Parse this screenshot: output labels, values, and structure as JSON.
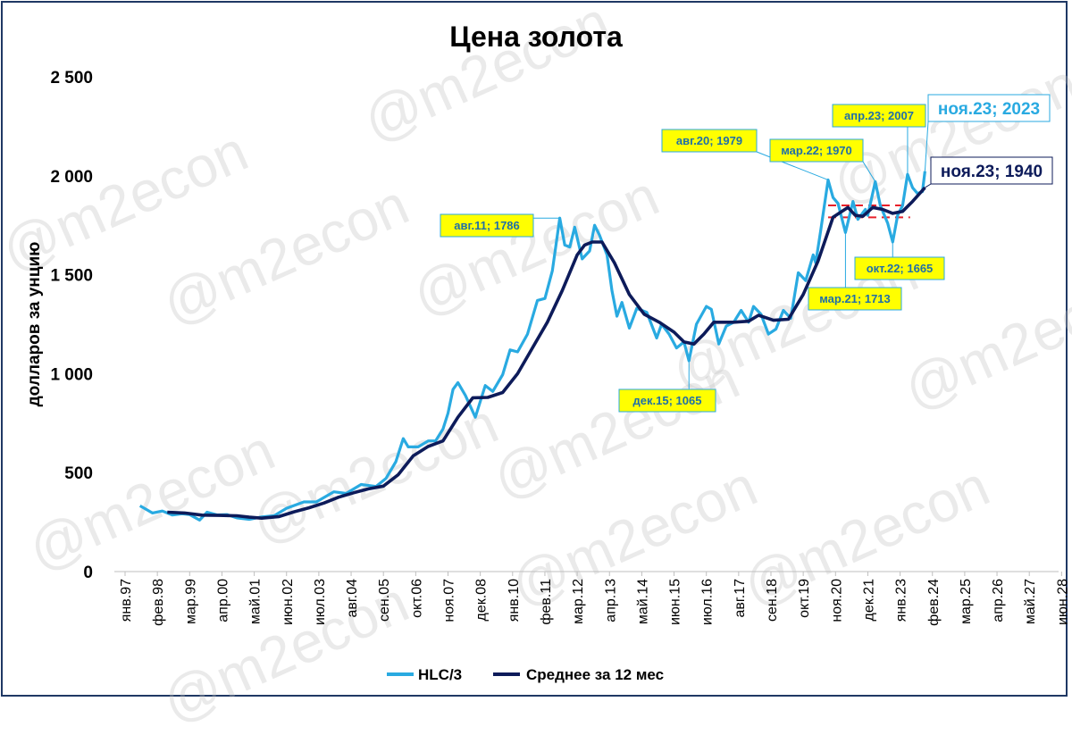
{
  "chart_data": {
    "type": "line",
    "title": "Цена золота",
    "ylabel": "долларов за унцию",
    "xlabel": "",
    "ylim": [
      0,
      2500
    ],
    "y_ticks": [
      {
        "value": 0,
        "label": "0"
      },
      {
        "value": 500,
        "label": "500"
      },
      {
        "value": 1000,
        "label": "1 000"
      },
      {
        "value": 1500,
        "label": "1 500"
      },
      {
        "value": 2000,
        "label": "2 000"
      },
      {
        "value": 2500,
        "label": "2 500"
      }
    ],
    "x_ticks": [
      "янв.97",
      "фев.98",
      "мар.99",
      "апр.00",
      "май.01",
      "июн.02",
      "июл.03",
      "авг.04",
      "сен.05",
      "окт.06",
      "ноя.07",
      "дек.08",
      "янв.10",
      "фев.11",
      "мар.12",
      "апр.13",
      "май.14",
      "июн.15",
      "июл.16",
      "авг.17",
      "сен.18",
      "окт.19",
      "ноя.20",
      "дек.21",
      "янв.23",
      "фев.24",
      "мар.25",
      "апр.26",
      "май.27",
      "июн.28"
    ],
    "legend_position": "bottom",
    "grid": false,
    "series": [
      {
        "name": "HLC/3",
        "color": "#29aae1",
        "points": [
          [
            "1997-07",
            332
          ],
          [
            "1997-09",
            318
          ],
          [
            "1997-12",
            296
          ],
          [
            "1998-04",
            306
          ],
          [
            "1998-08",
            286
          ],
          [
            "1998-12",
            292
          ],
          [
            "1999-03",
            288
          ],
          [
            "1999-07",
            260
          ],
          [
            "1999-10",
            300
          ],
          [
            "2000-02",
            286
          ],
          [
            "2000-06",
            288
          ],
          [
            "2000-10",
            271
          ],
          [
            "2001-03",
            264
          ],
          [
            "2001-08",
            276
          ],
          [
            "2002-01",
            282
          ],
          [
            "2002-06",
            320
          ],
          [
            "2003-01",
            352
          ],
          [
            "2003-06",
            352
          ],
          [
            "2004-01",
            403
          ],
          [
            "2004-06",
            395
          ],
          [
            "2004-12",
            440
          ],
          [
            "2005-06",
            430
          ],
          [
            "2005-10",
            470
          ],
          [
            "2006-02",
            555
          ],
          [
            "2006-05",
            672
          ],
          [
            "2006-07",
            630
          ],
          [
            "2006-11",
            630
          ],
          [
            "2007-03",
            660
          ],
          [
            "2007-06",
            660
          ],
          [
            "2007-09",
            720
          ],
          [
            "2007-11",
            800
          ],
          [
            "2008-01",
            920
          ],
          [
            "2008-03",
            955
          ],
          [
            "2008-06",
            890
          ],
          [
            "2008-10",
            780
          ],
          [
            "2009-02",
            940
          ],
          [
            "2009-05",
            910
          ],
          [
            "2009-09",
            995
          ],
          [
            "2009-12",
            1120
          ],
          [
            "2010-03",
            1110
          ],
          [
            "2010-07",
            1200
          ],
          [
            "2010-11",
            1370
          ],
          [
            "2011-02",
            1380
          ],
          [
            "2011-05",
            1520
          ],
          [
            "2011-08",
            1786
          ],
          [
            "2011-10",
            1650
          ],
          [
            "2011-12",
            1640
          ],
          [
            "2012-02",
            1740
          ],
          [
            "2012-05",
            1580
          ],
          [
            "2012-08",
            1620
          ],
          [
            "2012-10",
            1750
          ],
          [
            "2012-12",
            1700
          ],
          [
            "2013-03",
            1600
          ],
          [
            "2013-05",
            1420
          ],
          [
            "2013-07",
            1290
          ],
          [
            "2013-09",
            1360
          ],
          [
            "2013-12",
            1230
          ],
          [
            "2014-03",
            1330
          ],
          [
            "2014-07",
            1310
          ],
          [
            "2014-11",
            1180
          ],
          [
            "2015-01",
            1250
          ],
          [
            "2015-04",
            1200
          ],
          [
            "2015-07",
            1130
          ],
          [
            "2015-10",
            1160
          ],
          [
            "2015-12",
            1065
          ],
          [
            "2016-03",
            1250
          ],
          [
            "2016-07",
            1340
          ],
          [
            "2016-09",
            1325
          ],
          [
            "2016-12",
            1150
          ],
          [
            "2017-03",
            1240
          ],
          [
            "2017-06",
            1260
          ],
          [
            "2017-09",
            1320
          ],
          [
            "2017-12",
            1260
          ],
          [
            "2018-02",
            1340
          ],
          [
            "2018-05",
            1300
          ],
          [
            "2018-08",
            1200
          ],
          [
            "2018-11",
            1225
          ],
          [
            "2019-02",
            1320
          ],
          [
            "2019-05",
            1280
          ],
          [
            "2019-08",
            1510
          ],
          [
            "2019-11",
            1470
          ],
          [
            "2020-02",
            1600
          ],
          [
            "2020-03",
            1560
          ],
          [
            "2020-05",
            1720
          ],
          [
            "2020-08",
            1979
          ],
          [
            "2020-10",
            1890
          ],
          [
            "2020-12",
            1860
          ],
          [
            "2021-03",
            1713
          ],
          [
            "2021-06",
            1870
          ],
          [
            "2021-08",
            1780
          ],
          [
            "2021-11",
            1830
          ],
          [
            "2021-12",
            1800
          ],
          [
            "2022-03",
            1970
          ],
          [
            "2022-05",
            1850
          ],
          [
            "2022-08",
            1760
          ],
          [
            "2022-10",
            1665
          ],
          [
            "2022-12",
            1800
          ],
          [
            "2023-02",
            1850
          ],
          [
            "2023-04",
            2007
          ],
          [
            "2023-06",
            1940
          ],
          [
            "2023-08",
            1910
          ],
          [
            "2023-10",
            1920
          ],
          [
            "2023-11",
            2023
          ]
        ]
      },
      {
        "name": "Среднее за 12 мес",
        "color": "#0d1b5a",
        "points": [
          [
            "1998-06",
            300
          ],
          [
            "1999-01",
            296
          ],
          [
            "1999-08",
            285
          ],
          [
            "2000-03",
            284
          ],
          [
            "2000-10",
            282
          ],
          [
            "2001-03",
            275
          ],
          [
            "2001-08",
            270
          ],
          [
            "2002-03",
            278
          ],
          [
            "2002-09",
            302
          ],
          [
            "2003-03",
            322
          ],
          [
            "2003-09",
            346
          ],
          [
            "2004-03",
            376
          ],
          [
            "2004-09",
            398
          ],
          [
            "2005-03",
            418
          ],
          [
            "2005-09",
            432
          ],
          [
            "2006-03",
            490
          ],
          [
            "2006-09",
            585
          ],
          [
            "2007-03",
            632
          ],
          [
            "2007-09",
            660
          ],
          [
            "2008-03",
            780
          ],
          [
            "2008-09",
            878
          ],
          [
            "2009-03",
            880
          ],
          [
            "2009-09",
            905
          ],
          [
            "2010-03",
            1000
          ],
          [
            "2010-09",
            1130
          ],
          [
            "2011-03",
            1260
          ],
          [
            "2011-09",
            1420
          ],
          [
            "2012-03",
            1600
          ],
          [
            "2012-06",
            1650
          ],
          [
            "2012-09",
            1665
          ],
          [
            "2013-01",
            1665
          ],
          [
            "2013-06",
            1560
          ],
          [
            "2013-12",
            1400
          ],
          [
            "2014-06",
            1300
          ],
          [
            "2014-12",
            1260
          ],
          [
            "2015-06",
            1210
          ],
          [
            "2015-10",
            1160
          ],
          [
            "2016-02",
            1150
          ],
          [
            "2016-06",
            1200
          ],
          [
            "2016-10",
            1260
          ],
          [
            "2017-06",
            1260
          ],
          [
            "2017-12",
            1265
          ],
          [
            "2018-04",
            1295
          ],
          [
            "2018-10",
            1270
          ],
          [
            "2019-04",
            1275
          ],
          [
            "2019-10",
            1400
          ],
          [
            "2020-04",
            1570
          ],
          [
            "2020-10",
            1790
          ],
          [
            "2021-04",
            1840
          ],
          [
            "2021-07",
            1800
          ],
          [
            "2021-10",
            1795
          ],
          [
            "2022-02",
            1840
          ],
          [
            "2022-06",
            1830
          ],
          [
            "2022-10",
            1810
          ],
          [
            "2023-02",
            1820
          ],
          [
            "2023-06",
            1870
          ],
          [
            "2023-11",
            1940
          ]
        ]
      }
    ],
    "annotations": [
      {
        "text": "авг.11; 1786",
        "date": "2011-08",
        "value": 1786,
        "series": "HLC/3"
      },
      {
        "text": "дек.15; 1065",
        "date": "2015-12",
        "value": 1065,
        "series": "HLC/3"
      },
      {
        "text": "авг.20; 1979",
        "date": "2020-08",
        "value": 1979,
        "series": "HLC/3"
      },
      {
        "text": "мар.22; 1970",
        "date": "2022-03",
        "value": 1970,
        "series": "HLC/3"
      },
      {
        "text": "апр.23; 2007",
        "date": "2023-04",
        "value": 2007,
        "series": "HLC/3"
      },
      {
        "text": "мар.21; 1713",
        "date": "2021-03",
        "value": 1713,
        "series": "HLC/3"
      },
      {
        "text": "окт.22; 1665",
        "date": "2022-10",
        "value": 1665,
        "series": "HLC/3"
      },
      {
        "text": "ноя.23; 2023",
        "date": "2023-11",
        "value": 2023,
        "series": "HLC/3"
      },
      {
        "text": "ноя.23; 1940",
        "date": "2023-11",
        "value": 1940,
        "series": "Среднее за 12 мес"
      }
    ],
    "reference_lines": [
      {
        "value": 1850,
        "from": "2020-08",
        "to": "2023-05",
        "color": "#e8202a",
        "style": "dashed"
      },
      {
        "value": 1790,
        "from": "2020-08",
        "to": "2023-05",
        "color": "#e8202a",
        "style": "dashed"
      }
    ]
  },
  "watermark": "@m2econ"
}
